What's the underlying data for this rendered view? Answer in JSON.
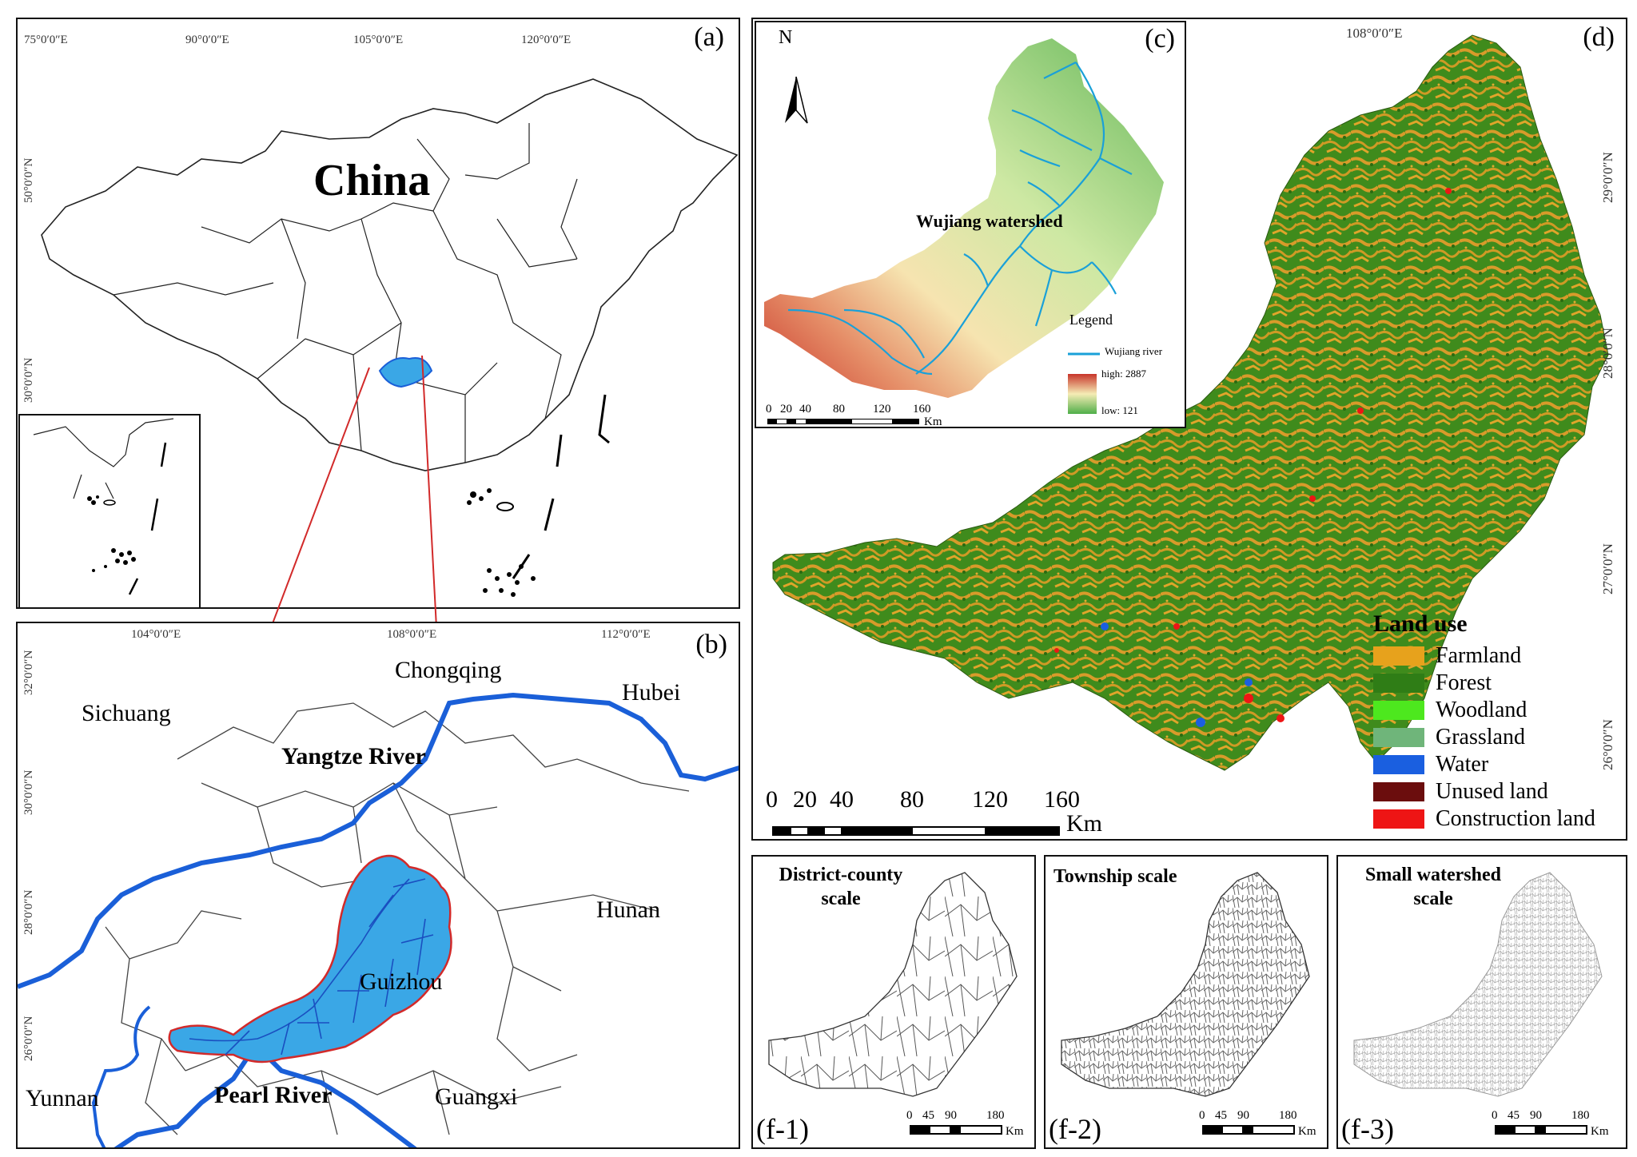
{
  "panel_a": {
    "label": "(a)",
    "country_label": "China",
    "lon_ticks": [
      "75°0′0″E",
      "90°0′0″E",
      "105°0′0″E",
      "120°0′0″E"
    ],
    "lat_ticks": [
      "50°0′0″N",
      "30°0′0″N"
    ]
  },
  "panel_b": {
    "label": "(b)",
    "lon_ticks": [
      "104°0′0″E",
      "108°0′0″E",
      "112°0′0″E"
    ],
    "lat_ticks": [
      "32°0′0″N",
      "30°0′0″N",
      "28°0′0″N",
      "26°0′0″N"
    ],
    "place_labels": {
      "sichuang": "Sichuang",
      "chongqing": "Chongqing",
      "hubei": "Hubei",
      "yangtze": "Yangtze River",
      "hunan": "Hunan",
      "guizhou": "Guizhou",
      "yunnan": "Yunnan",
      "pearl": "Pearl River",
      "guangxi": "Guangxi"
    },
    "colors": {
      "river": "#1a5fd8",
      "watershed_fill": "#3aa7e6",
      "watershed_border": "#d22a2a"
    }
  },
  "panel_c": {
    "label": "(c)",
    "north": "N",
    "title": "Wujiang watershed",
    "legend_title": "Legend",
    "legend_river": "Wujiang river",
    "legend_high": "high: 2887",
    "legend_low": "low: 121",
    "scale_ticks": [
      "0",
      "20",
      "40",
      "80",
      "120",
      "160"
    ],
    "scale_unit": "Km"
  },
  "panel_d": {
    "label": "(d)",
    "lon_ticks": [
      "108°0′0″E"
    ],
    "lat_ticks": [
      "29°0′0″N",
      "28°0′0″N",
      "27°0′0″N",
      "26°0′0″N"
    ],
    "scale_ticks": [
      "0",
      "20",
      "40",
      "80",
      "120",
      "160"
    ],
    "scale_unit": "Km",
    "legend_title": "Land use",
    "legend": [
      {
        "label": "Farmland",
        "color": "#e7a21c"
      },
      {
        "label": "Forest",
        "color": "#2f7d16"
      },
      {
        "label": "Woodland",
        "color": "#4de81e"
      },
      {
        "label": "Grassland",
        "color": "#6fb57a"
      },
      {
        "label": "Water",
        "color": "#1a5fe0"
      },
      {
        "label": "Unused land",
        "color": "#6b0d0d"
      },
      {
        "label": "Construction land",
        "color": "#ee1515"
      }
    ]
  },
  "panel_f1": {
    "label": "(f-1)",
    "title_line1": "District-county",
    "title_line2": "scale",
    "scale_ticks": [
      "0",
      "45",
      "90",
      "180"
    ],
    "scale_unit": "Km"
  },
  "panel_f2": {
    "label": "(f-2)",
    "title_line1": "Township scale",
    "scale_ticks": [
      "0",
      "45",
      "90",
      "180"
    ],
    "scale_unit": "Km"
  },
  "panel_f3": {
    "label": "(f-3)",
    "title_line1": "Small watershed",
    "title_line2": "scale",
    "scale_ticks": [
      "0",
      "45",
      "90",
      "180"
    ],
    "scale_unit": "Km"
  }
}
